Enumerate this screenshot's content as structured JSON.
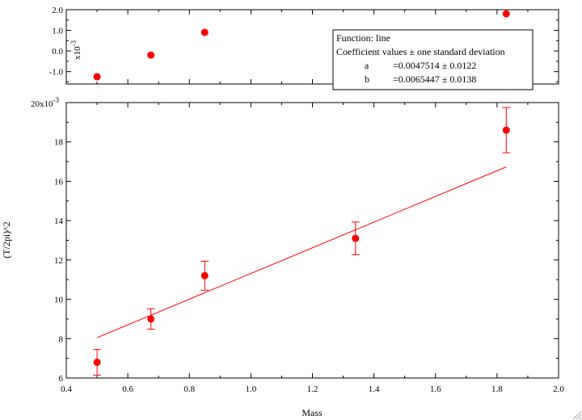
{
  "chart_data": {
    "type": "scatter",
    "title": "",
    "xlabel": "Mass",
    "ylabel": "(T/2pi)^2",
    "xlim": [
      0.4,
      2.0
    ],
    "ylim": [
      0.006,
      0.02
    ],
    "x_ticks": [
      "0.4",
      "0.6",
      "0.8",
      "1.0",
      "1.2",
      "1.4",
      "1.6",
      "1.8",
      "2.0"
    ],
    "y_ticks": [
      "6",
      "8",
      "10",
      "12",
      "14",
      "16",
      "18"
    ],
    "y_top_label": "20x10",
    "y_top_exp": "-3",
    "residual_axis": {
      "unit_label": "x10",
      "unit_exp": "-3",
      "ylim": [
        -1.6,
        2.0
      ],
      "ticks": [
        "-1.0",
        "0.0",
        "1.0",
        "2.0"
      ]
    },
    "series": [
      {
        "kind": "data",
        "color": "#ff0000",
        "points": [
          {
            "x": 0.5,
            "y": 0.0068,
            "err": 0.00065
          },
          {
            "x": 0.675,
            "y": 0.009,
            "err": 0.00052
          },
          {
            "x": 0.85,
            "y": 0.0112,
            "err": 0.00074
          },
          {
            "x": 1.34,
            "y": 0.0131,
            "err": 0.00083
          },
          {
            "x": 1.83,
            "y": 0.0186,
            "err": 0.00115
          }
        ]
      },
      {
        "kind": "fit",
        "color": "#ff0000",
        "x": [
          0.5,
          1.83
        ],
        "y": [
          0.00805,
          0.01673
        ]
      }
    ],
    "residuals": {
      "color": "#ff0000",
      "x": [
        0.5,
        0.675,
        0.85,
        1.34,
        1.83
      ],
      "y": [
        -1.25,
        -0.2,
        0.9,
        null,
        1.8
      ]
    },
    "legend": {
      "line1": "Function: line",
      "line2": "Coefficient values ± one standard deviation",
      "rows": [
        {
          "name": "a",
          "value": "=0.0047514 ± 0.0122"
        },
        {
          "name": "b",
          "value": "=0.0065447 ± 0.0138"
        }
      ]
    }
  }
}
